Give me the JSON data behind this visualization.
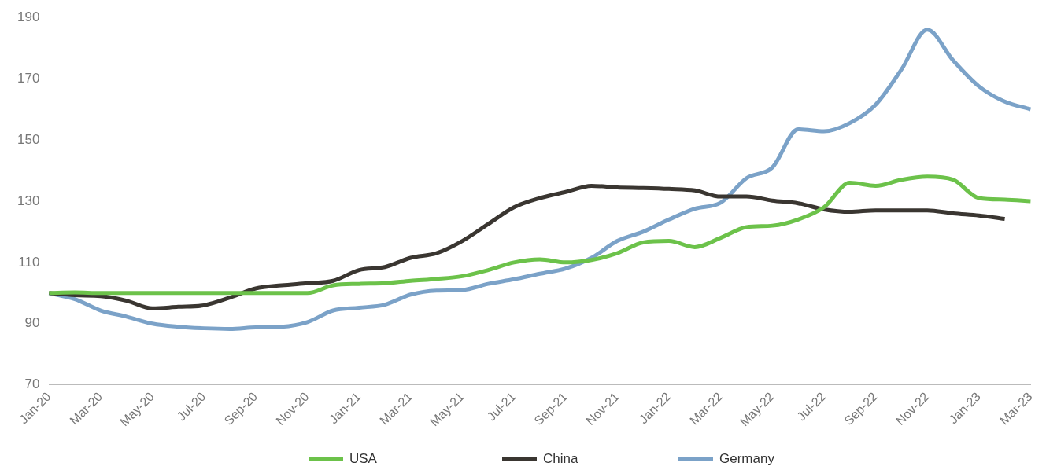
{
  "chart_data": {
    "type": "line",
    "categories": [
      "Jan-20",
      null,
      "Mar-20",
      null,
      "May-20",
      null,
      "Jul-20",
      null,
      "Sep-20",
      null,
      "Nov-20",
      null,
      "Jan-21",
      null,
      "Mar-21",
      null,
      "May-21",
      null,
      "Jul-21",
      null,
      "Sep-21",
      null,
      "Nov-21",
      null,
      "Jan-22",
      null,
      "Mar-22",
      null,
      "May-22",
      null,
      "Jul-22",
      null,
      "Sep-22",
      null,
      "Nov-22",
      null,
      "Jan-23",
      null,
      "Mar-23"
    ],
    "series": [
      {
        "name": "USA",
        "color": "#6cc24a",
        "values": [
          100,
          100.2,
          100,
          100,
          100,
          100,
          100,
          100,
          100,
          100,
          100,
          102.5,
          103,
          103.2,
          104,
          104.6,
          105.5,
          107.5,
          110,
          111,
          110,
          110.8,
          113,
          116.5,
          117,
          115,
          118,
          121.5,
          122,
          124,
          128,
          136,
          135,
          137,
          138,
          137,
          131,
          130.5,
          130
        ]
      },
      {
        "name": "China",
        "color": "#3a3631",
        "values": [
          100,
          99.3,
          99,
          97.5,
          95,
          95.5,
          96,
          98.5,
          101.5,
          102.5,
          103.2,
          104,
          107.5,
          108.5,
          111.5,
          113,
          117,
          122.5,
          128,
          131,
          133,
          135,
          134.5,
          134.3,
          134,
          133.5,
          131.5,
          131.5,
          130.2,
          129.3,
          127.3,
          126.5,
          127,
          127,
          127,
          126,
          125.3,
          124.2,
          null
        ]
      },
      {
        "name": "Germany",
        "color": "#7ba2c8",
        "values": [
          100,
          98,
          94.3,
          92.3,
          90,
          89,
          88.5,
          88.3,
          88.8,
          89,
          90.5,
          94.3,
          95.2,
          96.2,
          99.5,
          100.8,
          101,
          103,
          104.5,
          106.3,
          108,
          111.5,
          117,
          120,
          124,
          127.5,
          129.5,
          137.5,
          141,
          153.5,
          152.8,
          155.5,
          161.5,
          173,
          186,
          176,
          167.5,
          162.5,
          160
        ]
      }
    ],
    "ylim": [
      70,
      190
    ],
    "yticks": [
      70,
      90,
      110,
      130,
      150,
      170,
      190
    ],
    "grid": false,
    "legend": "bottom",
    "marker": "none",
    "line_style": "solid"
  }
}
